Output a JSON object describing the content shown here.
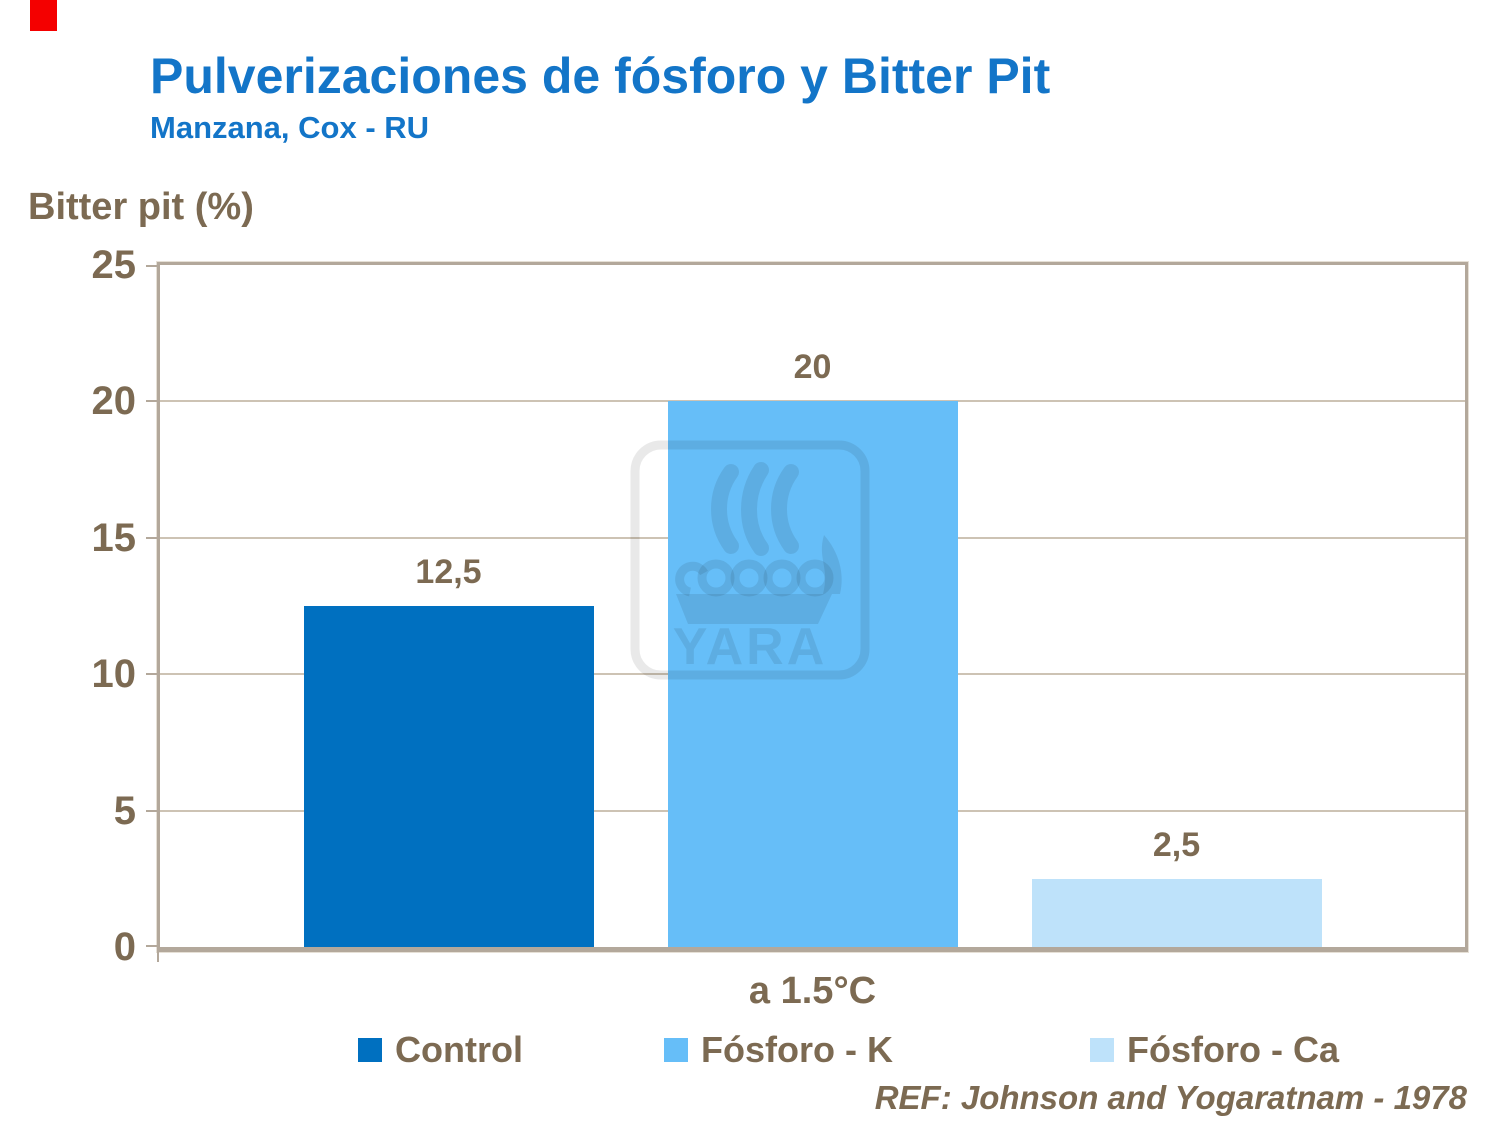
{
  "slide": {
    "red_mark_color": "#F40000"
  },
  "header": {
    "title": "Pulverizaciones de fósforo y Bitter Pit",
    "subtitle": "Manzana, Cox - RU",
    "title_color": "#1375C8"
  },
  "chart_data": {
    "type": "bar",
    "title": "Pulverizaciones de fósforo y Bitter Pit",
    "subtitle": "Manzana, Cox - RU",
    "ylabel": "Bitter pit (%)",
    "xlabel": "",
    "categories": [
      "a 1.5°C"
    ],
    "series": [
      {
        "name": "Control",
        "values": [
          12.5
        ],
        "label": "12,5",
        "color": "#0070C0"
      },
      {
        "name": "Fósforo - K",
        "values": [
          20
        ],
        "label": "20",
        "color": "#66BEF8"
      },
      {
        "name": "Fósforo - Ca",
        "values": [
          2.5
        ],
        "label": "2,5",
        "color": "#BEE2FA"
      }
    ],
    "ylim": [
      0,
      25
    ],
    "yticks": [
      0,
      5,
      10,
      15,
      20,
      25
    ],
    "grid": true,
    "legend_position": "bottom",
    "frame_color": "#B3A89B",
    "gridline_color": "#CDC3B4",
    "label_color": "#7C6A52"
  },
  "x_axis": {
    "category_label": "a 1.5°C"
  },
  "watermark": {
    "name": "yara-logo",
    "text": "YARA"
  },
  "footer": {
    "reference": "REF: Johnson and Yogaratnam - 1978"
  }
}
